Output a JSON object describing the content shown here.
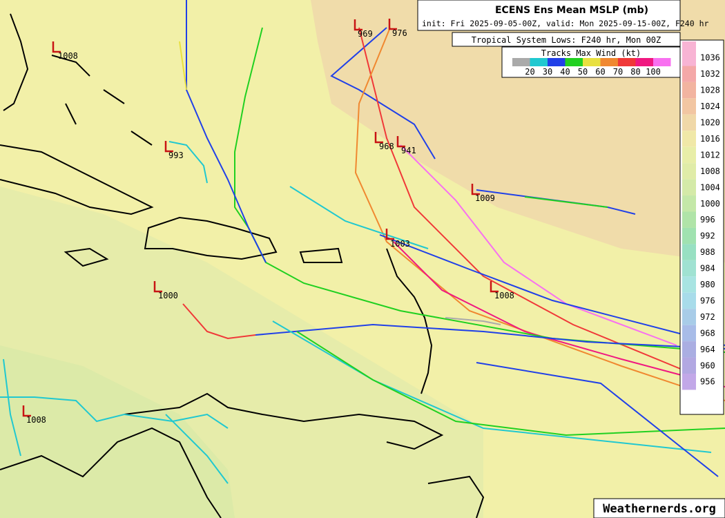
{
  "header": {
    "title": "ECENS Ens Mean MSLP (mb)",
    "subtitle": "init: Fri 2025-09-05-00Z, valid: Mon 2025-09-15-00Z, F240 hr"
  },
  "lows_caption": "Tropical System Lows: F240 hr, Mon 00Z",
  "wind_legend": {
    "title": "Tracks Max Wind (kt)",
    "labels": [
      20,
      30,
      40,
      50,
      60,
      70,
      80,
      100
    ],
    "colors": [
      "#aaaaaa",
      "#20c8d0",
      "#2040e8",
      "#20d020",
      "#e8e040",
      "#f08830",
      "#f03838",
      "#f01880",
      "#f870f0"
    ]
  },
  "colorbar": {
    "levels": [
      1036,
      1032,
      1028,
      1024,
      1020,
      1016,
      1012,
      1008,
      1004,
      1000,
      996,
      992,
      988,
      984,
      980,
      976,
      972,
      968,
      964,
      960,
      956
    ],
    "colors": [
      "#f8b4d4",
      "#f4a8a8",
      "#f2b4a0",
      "#f2c6a2",
      "#f0d8a8",
      "#f0e8a8",
      "#e8eea8",
      "#e0eca8",
      "#d4eaa8",
      "#c4e8a8",
      "#b0e4a8",
      "#a0e2b0",
      "#98e0c2",
      "#a0e2d2",
      "#a8e4e2",
      "#a8dcea",
      "#a8cce8",
      "#a8bce8",
      "#aaaee2",
      "#b2a8e2",
      "#c2a8e8"
    ]
  },
  "lows": [
    "1008",
    "993",
    "969",
    "976",
    "968",
    "941",
    "1009",
    "1003",
    "1008",
    "1000",
    "1008"
  ],
  "credit": "Weathernerds.org"
}
